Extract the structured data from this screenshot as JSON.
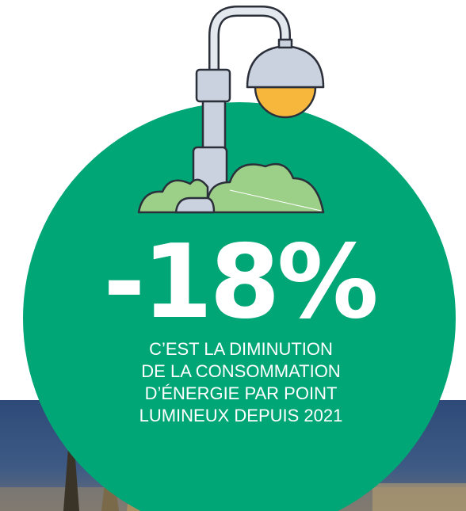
{
  "headline": "-18%",
  "caption": [
    "C’EST LA DIMINUTION",
    "DE LA CONSOMMATION",
    "D’ÉNERGIE PAR POINT",
    "LUMINEUX DEPUIS 2021"
  ]
}
